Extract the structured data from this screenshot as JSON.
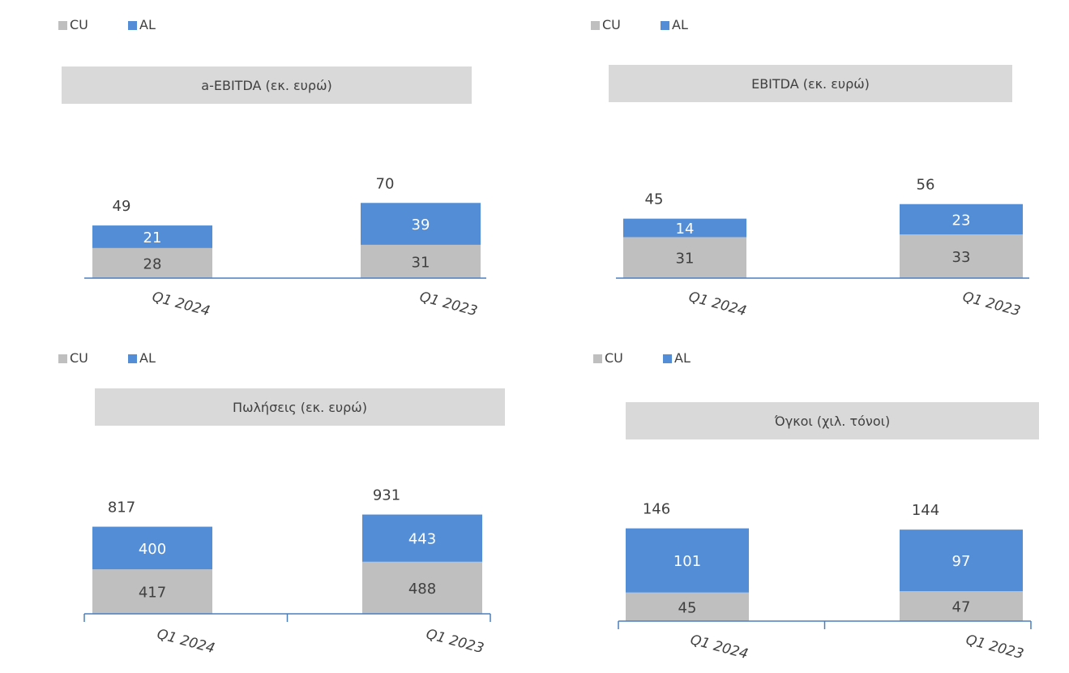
{
  "colors": {
    "cu": "#bfbfbf",
    "al": "#538dd5",
    "axis": "#4a7ebb",
    "title_bg": "#d9d9d9",
    "text": "#404040",
    "label_on_al": "#ffffff"
  },
  "chart_data": [
    {
      "type": "bar",
      "stacked": true,
      "title": "a-EBITDA (εκ. ευρώ)",
      "categories": [
        "Q1 2024",
        "Q1 2023"
      ],
      "series": [
        {
          "name": "CU",
          "values": [
            28,
            31
          ]
        },
        {
          "name": "AL",
          "values": [
            21,
            39
          ]
        }
      ],
      "totals": [
        49,
        70
      ],
      "legend": "top-left",
      "grid": false
    },
    {
      "type": "bar",
      "stacked": true,
      "title": "EBITDA (εκ. ευρώ)",
      "categories": [
        "Q1 2024",
        "Q1 2023"
      ],
      "series": [
        {
          "name": "CU",
          "values": [
            31,
            33
          ]
        },
        {
          "name": "AL",
          "values": [
            14,
            23
          ]
        }
      ],
      "totals": [
        45,
        56
      ],
      "legend": "top-left",
      "grid": false
    },
    {
      "type": "bar",
      "stacked": true,
      "title": "Πωλήσεις (εκ. ευρώ)",
      "categories": [
        "Q1 2024",
        "Q1 2023"
      ],
      "series": [
        {
          "name": "CU",
          "values": [
            417,
            488
          ]
        },
        {
          "name": "AL",
          "values": [
            400,
            443
          ]
        }
      ],
      "totals": [
        817,
        931
      ],
      "legend": "top-left",
      "grid": false
    },
    {
      "type": "bar",
      "stacked": true,
      "title": "Όγκοι (χιλ. τόνοι)",
      "categories": [
        "Q1 2024",
        "Q1 2023"
      ],
      "series": [
        {
          "name": "CU",
          "values": [
            45,
            47
          ]
        },
        {
          "name": "AL",
          "values": [
            101,
            97
          ]
        }
      ],
      "totals": [
        146,
        144
      ],
      "legend": "top-left",
      "grid": false
    }
  ]
}
